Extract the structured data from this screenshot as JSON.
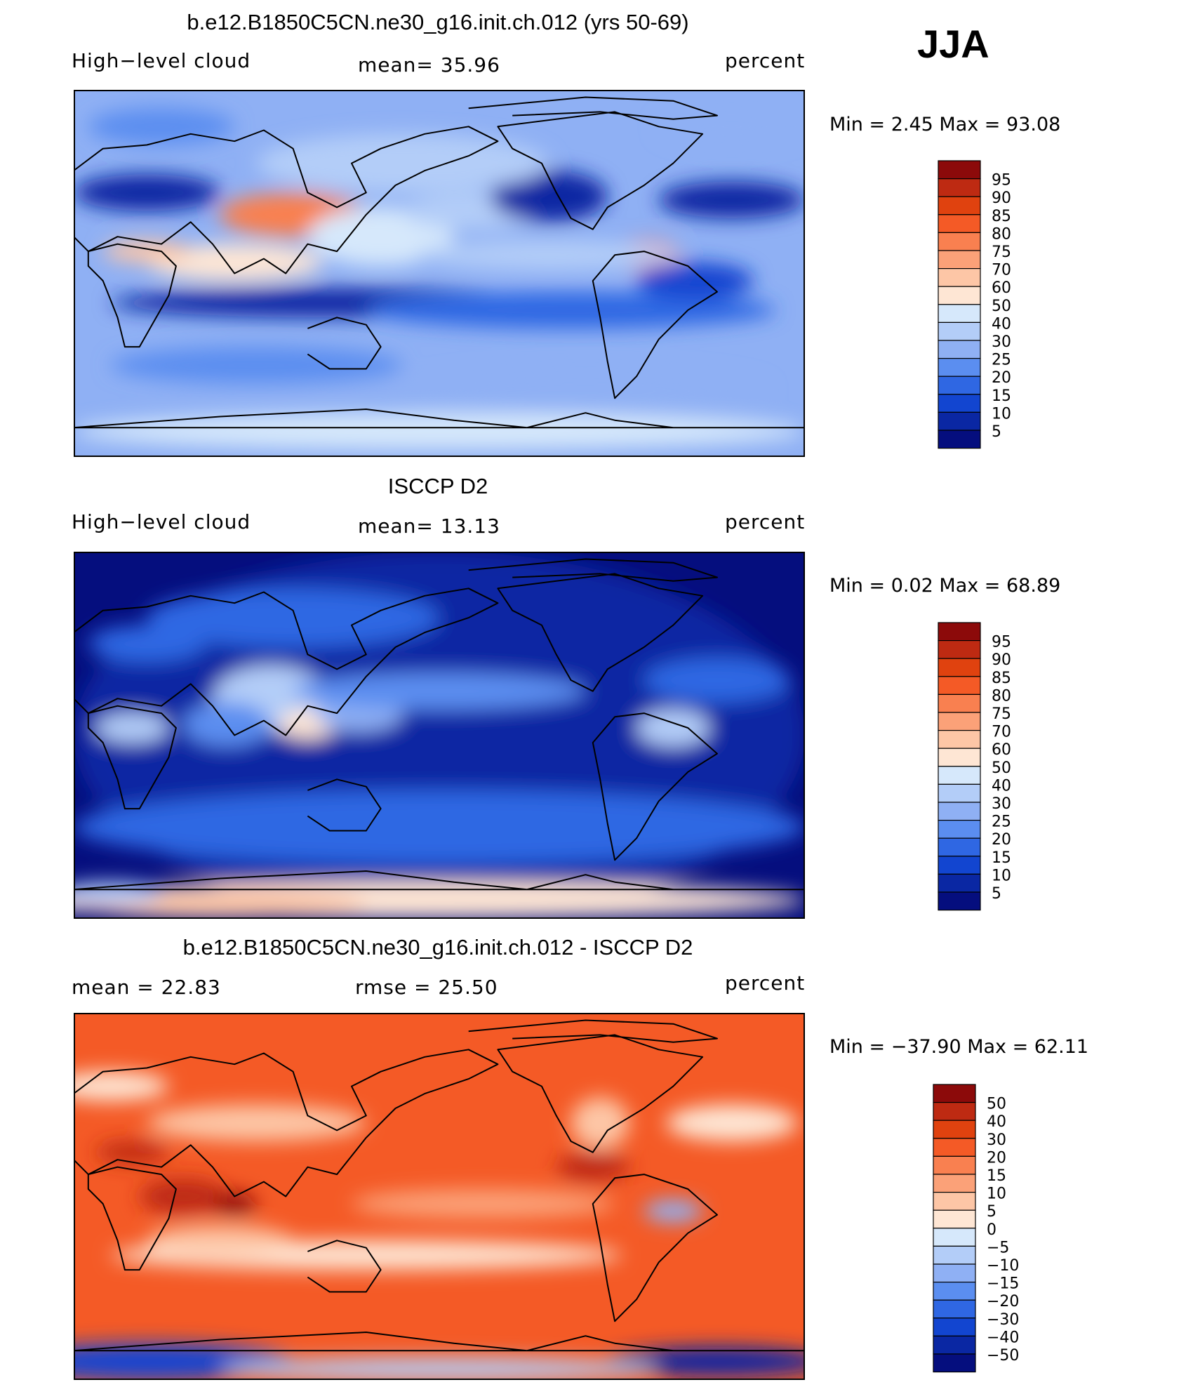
{
  "season": "JJA",
  "panels": [
    {
      "title": "b.e12.B1850C5CN.ne30_g16.init.ch.012 (yrs 50-69)",
      "left_label": "High−level cloud",
      "center_label": "mean=   35.96",
      "right_label": "percent",
      "minmax": "Min =    2.45 Max =   93.08"
    },
    {
      "title": "ISCCP D2",
      "left_label": "High−level cloud",
      "center_label": "mean=   13.13",
      "right_label": "percent",
      "minmax": "Min =    0.02 Max =   68.89"
    },
    {
      "title": "b.e12.B1850C5CN.ne30_g16.init.ch.012 - ISCCP D2",
      "left_label": "mean =   22.83",
      "center_label": "rmse =   25.50",
      "right_label": "percent",
      "minmax": "Min = −37.90 Max =   62.11"
    }
  ],
  "chart_data": [
    {
      "type": "heatmap",
      "title": "b.e12.B1850C5CN.ne30_g16.init.ch.012 (yrs 50-69)",
      "variable": "High-level cloud",
      "units": "percent",
      "mean": 35.96,
      "min": 2.45,
      "max": 93.08,
      "colorbar_labels": [
        "95",
        "90",
        "85",
        "80",
        "75",
        "70",
        "60",
        "50",
        "40",
        "30",
        "25",
        "20",
        "15",
        "10",
        "5"
      ],
      "colors": [
        "#8c0a0a",
        "#be2a12",
        "#e0420f",
        "#f45a26",
        "#f98050",
        "#fba178",
        "#fdc6a6",
        "#fee6d4",
        "#d6e8fb",
        "#b3cdf8",
        "#8fb0f4",
        "#5b8ef0",
        "#2f67e3",
        "#1245d0",
        "#0a27a3",
        "#050e7e"
      ]
    },
    {
      "type": "heatmap",
      "title": "ISCCP D2",
      "variable": "High-level cloud",
      "units": "percent",
      "mean": 13.13,
      "min": 0.02,
      "max": 68.89,
      "colorbar_labels": [
        "95",
        "90",
        "85",
        "80",
        "75",
        "70",
        "60",
        "50",
        "40",
        "30",
        "25",
        "20",
        "15",
        "10",
        "5"
      ],
      "colors": [
        "#8c0a0a",
        "#be2a12",
        "#e0420f",
        "#f45a26",
        "#f98050",
        "#fba178",
        "#fdc6a6",
        "#fee6d4",
        "#d6e8fb",
        "#b3cdf8",
        "#8fb0f4",
        "#5b8ef0",
        "#2f67e3",
        "#1245d0",
        "#0a27a3",
        "#050e7e"
      ]
    },
    {
      "type": "heatmap",
      "title": "b.e12.B1850C5CN.ne30_g16.init.ch.012 - ISCCP D2",
      "units": "percent",
      "mean": 22.83,
      "rmse": 25.5,
      "min": -37.9,
      "max": 62.11,
      "colorbar_labels": [
        "50",
        "40",
        "30",
        "20",
        "15",
        "10",
        "5",
        "0",
        "−5",
        "−10",
        "−15",
        "−20",
        "−30",
        "−40",
        "−50"
      ],
      "colors": [
        "#8c0a0a",
        "#be2a12",
        "#e0420f",
        "#f45a26",
        "#f98050",
        "#fba178",
        "#fdc6a6",
        "#fee6d4",
        "#d6e8fb",
        "#b3cdf8",
        "#8fb0f4",
        "#5b8ef0",
        "#2f67e3",
        "#1245d0",
        "#0a27a3",
        "#050e7e"
      ]
    }
  ]
}
